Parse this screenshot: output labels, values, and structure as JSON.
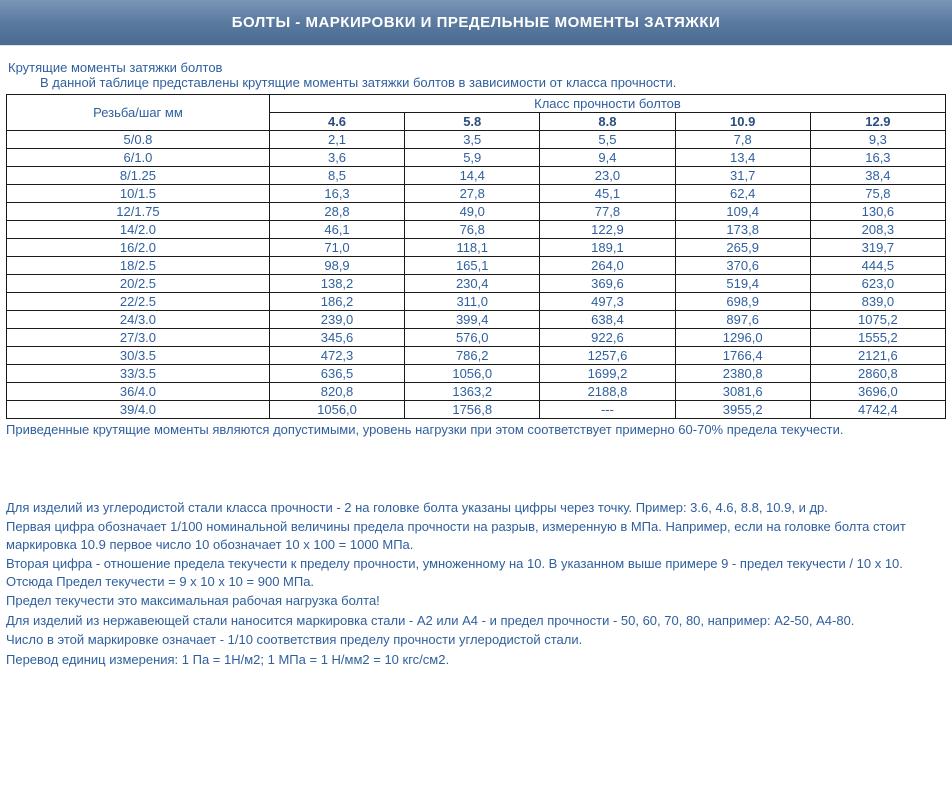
{
  "banner_title": "БОЛТЫ - МАРКИРОВКИ И ПРЕДЕЛЬНЫЕ МОМЕНТЫ ЗАТЯЖКИ",
  "intro_line1": "Крутящие моменты затяжки болтов",
  "intro_line2": "В данной таблице представлены крутящие моменты затяжки болтов в зависимости от класса прочности.",
  "table": {
    "row_header": "Резьба/шаг мм",
    "group_header": "Класс прочности болтов",
    "classes": [
      "4.6",
      "5.8",
      "8.8",
      "10.9",
      "12.9"
    ],
    "rows": [
      {
        "label": "5/0.8",
        "v": [
          "2,1",
          "3,5",
          "5,5",
          "7,8",
          "9,3"
        ]
      },
      {
        "label": "6/1.0",
        "v": [
          "3,6",
          "5,9",
          "9,4",
          "13,4",
          "16,3"
        ]
      },
      {
        "label": "8/1.25",
        "v": [
          "8,5",
          "14,4",
          "23,0",
          "31,7",
          "38,4"
        ]
      },
      {
        "label": "10/1.5",
        "v": [
          "16,3",
          "27,8",
          "45,1",
          "62,4",
          "75,8"
        ]
      },
      {
        "label": "12/1.75",
        "v": [
          "28,8",
          "49,0",
          "77,8",
          "109,4",
          "130,6"
        ]
      },
      {
        "label": "14/2.0",
        "v": [
          "46,1",
          "76,8",
          "122,9",
          "173,8",
          "208,3"
        ]
      },
      {
        "label": "16/2.0",
        "v": [
          "71,0",
          "118,1",
          "189,1",
          "265,9",
          "319,7"
        ]
      },
      {
        "label": "18/2.5",
        "v": [
          "98,9",
          "165,1",
          "264,0",
          "370,6",
          "444,5"
        ]
      },
      {
        "label": "20/2.5",
        "v": [
          "138,2",
          "230,4",
          "369,6",
          "519,4",
          "623,0"
        ]
      },
      {
        "label": "22/2.5",
        "v": [
          "186,2",
          "311,0",
          "497,3",
          "698,9",
          "839,0"
        ]
      },
      {
        "label": "24/3.0",
        "v": [
          "239,0",
          "399,4",
          "638,4",
          "897,6",
          "1075,2"
        ]
      },
      {
        "label": "27/3.0",
        "v": [
          "345,6",
          "576,0",
          "922,6",
          "1296,0",
          "1555,2"
        ]
      },
      {
        "label": "30/3.5",
        "v": [
          "472,3",
          "786,2",
          "1257,6",
          "1766,4",
          "2121,6"
        ]
      },
      {
        "label": "33/3.5",
        "v": [
          "636,5",
          "1056,0",
          "1699,2",
          "2380,8",
          "2860,8"
        ]
      },
      {
        "label": "36/4.0",
        "v": [
          "820,8",
          "1363,2",
          "2188,8",
          "3081,6",
          "3696,0"
        ]
      },
      {
        "label": "39/4.0",
        "v": [
          "1056,0",
          "1756,8",
          "---",
          "3955,2",
          "4742,4"
        ]
      }
    ]
  },
  "note1": "Приведенные крутящие моменты являются допустимыми, уровень нагрузки при этом соответствует примерно 60-70% предела текучести.",
  "explain": [
    "Для изделий из углеродистой стали класса прочности - 2 на головке болта указаны цифры через точку. Пример: 3.6, 4.6, 8.8, 10.9, и др.",
    "Первая цифра обозначает 1/100 номинальной величины предела прочности на разрыв, измеренную в МПа. Например, если на головке болта стоит маркировка 10.9 первое число 10 обозначает 10 x 100 = 1000 МПа.",
    "Вторая цифра - отношение предела текучести к пределу прочности, умноженному на 10. В указанном выше примере 9 - предел текучести / 10 x 10. Отсюда Предел текучести = 9 x 10 x 10 = 900 МПа.",
    "Предел текучести это максимальная рабочая нагрузка болта!",
    "Для изделий из нержавеющей стали наносится маркировка стали - A2 или A4 - и предел прочности - 50, 60, 70, 80, например: А2-50, А4-80.",
    "Число в этой маркировке означает - 1/10 соответствия пределу прочности углеродистой стали.",
    "Перевод единиц измерения: 1 Па = 1Н/м2; 1 МПа = 1 Н/мм2 = 10 кгс/см2."
  ],
  "colors": {
    "text": "#2f5f9f",
    "banner_bg_top": "#7a95b5",
    "banner_bg_bottom": "#4a6a90",
    "border": "#1a1a1a"
  }
}
